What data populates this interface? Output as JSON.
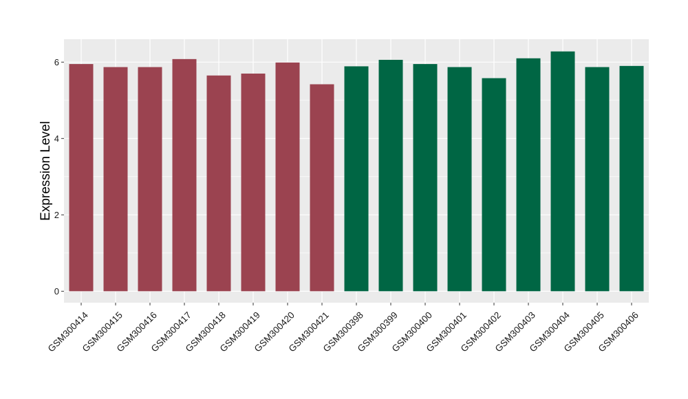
{
  "chart_data": {
    "type": "bar",
    "ylabel": "Expression Level",
    "xlabel": "",
    "ylim": [
      -0.3,
      6.6
    ],
    "yticks": [
      0,
      2,
      4,
      6
    ],
    "grid": true,
    "background": "#ebebeb",
    "categories": [
      "GSM300414",
      "GSM300415",
      "GSM300416",
      "GSM300417",
      "GSM300418",
      "GSM300419",
      "GSM300420",
      "GSM300421",
      "GSM300398",
      "GSM300399",
      "GSM300400",
      "GSM300401",
      "GSM300402",
      "GSM300403",
      "GSM300404",
      "GSM300405",
      "GSM300406"
    ],
    "values": [
      5.95,
      5.87,
      5.87,
      6.08,
      5.65,
      5.7,
      5.99,
      5.42,
      5.89,
      6.06,
      5.95,
      5.87,
      5.58,
      6.1,
      6.28,
      5.87,
      5.9
    ],
    "bar_colors": [
      "#9b4350",
      "#9b4350",
      "#9b4350",
      "#9b4350",
      "#9b4350",
      "#9b4350",
      "#9b4350",
      "#9b4350",
      "#006644",
      "#006644",
      "#006644",
      "#006644",
      "#006644",
      "#006644",
      "#006644",
      "#006644",
      "#006644"
    ]
  }
}
